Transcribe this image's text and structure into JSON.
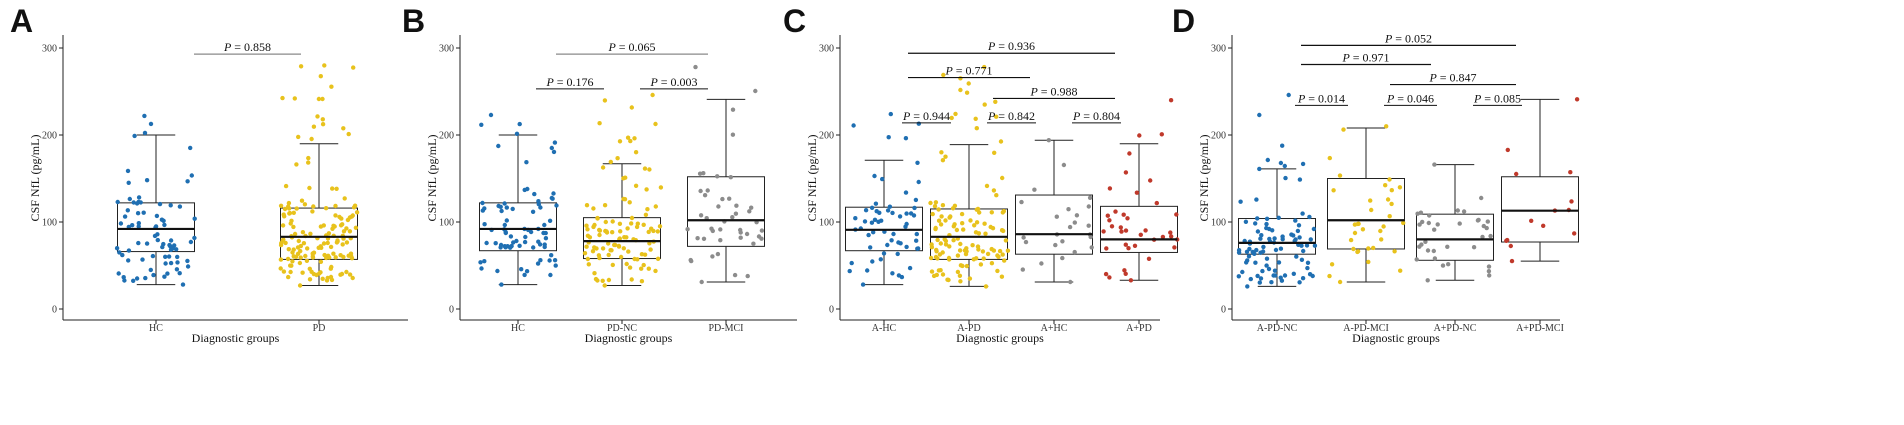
{
  "colors": {
    "HC": "#1f6fb2",
    "PD": "#e8c21c",
    "MCI": "#8c8c8c",
    "APD": "#c0392b",
    "box": "#222222",
    "sigline": "#8a8a8a",
    "pline": "#111111"
  },
  "chart_data": [
    {
      "type": "boxplot",
      "panel": "A",
      "xlabel": "Diagnostic groups",
      "ylabel": "CSF NfL (pg/mL)",
      "ylim": [
        0,
        300
      ],
      "yticks": [
        "0",
        "100",
        "200",
        "300"
      ],
      "groups": [
        {
          "name": "HC",
          "color_key": "HC",
          "n": 80,
          "q1": 66,
          "median": 92,
          "q3": 122,
          "wlo": 28,
          "whi": 200,
          "jmin": 28,
          "jmax": 222,
          "seed": 11
        },
        {
          "name": "PD",
          "color_key": "PD",
          "n": 160,
          "q1": 57,
          "median": 83,
          "q3": 116,
          "wlo": 27,
          "whi": 190,
          "jmin": 27,
          "jmax": 280,
          "seed": 23
        }
      ],
      "comparisons": [
        {
          "from": 0,
          "to": 1,
          "y": 293,
          "p": "0.858",
          "style": "grey"
        }
      ]
    },
    {
      "type": "boxplot",
      "panel": "B",
      "xlabel": "Diagnostic groups",
      "ylabel": "CSF NfL (pg/mL)",
      "ylim": [
        0,
        300
      ],
      "yticks": [
        "0",
        "100",
        "200",
        "300"
      ],
      "groups": [
        {
          "name": "HC",
          "color_key": "HC",
          "n": 80,
          "q1": 67,
          "median": 92,
          "q3": 122,
          "wlo": 28,
          "whi": 200,
          "jmin": 28,
          "jmax": 223,
          "seed": 37
        },
        {
          "name": "PD-NC",
          "color_key": "PD",
          "n": 110,
          "q1": 58,
          "median": 78,
          "q3": 105,
          "wlo": 27,
          "whi": 167,
          "jmin": 27,
          "jmax": 246,
          "seed": 41
        },
        {
          "name": "PD-MCI",
          "color_key": "MCI",
          "n": 45,
          "q1": 72,
          "median": 102,
          "q3": 152,
          "wlo": 31,
          "whi": 241,
          "jmin": 31,
          "jmax": 278,
          "seed": 53
        }
      ],
      "comparisons": [
        {
          "from": 0,
          "to": 2,
          "y": 293,
          "p": "0.065",
          "style": "grey"
        },
        {
          "from": 0,
          "to": 1,
          "y": 253,
          "p": "0.176",
          "style": "short"
        },
        {
          "from": 1,
          "to": 2,
          "y": 253,
          "p": "0.003",
          "style": "short"
        }
      ]
    },
    {
      "type": "boxplot",
      "panel": "C",
      "xlabel": "Diagnostic groups",
      "ylabel": "CSF NfL (pg/mL)",
      "ylim": [
        0,
        300
      ],
      "yticks": [
        "0",
        "100",
        "200",
        "300"
      ],
      "groups": [
        {
          "name": "A-HC",
          "color_key": "HC",
          "n": 60,
          "q1": 67,
          "median": 91,
          "q3": 117,
          "wlo": 28,
          "whi": 171,
          "jmin": 28,
          "jmax": 224,
          "seed": 61
        },
        {
          "name": "A-PD",
          "color_key": "PD",
          "n": 125,
          "q1": 57,
          "median": 83,
          "q3": 115,
          "wlo": 26,
          "whi": 189,
          "jmin": 26,
          "jmax": 278,
          "seed": 67
        },
        {
          "name": "A+HC",
          "color_key": "MCI",
          "n": 25,
          "q1": 63,
          "median": 86,
          "q3": 131,
          "wlo": 31,
          "whi": 194,
          "jmin": 31,
          "jmax": 194,
          "seed": 71
        },
        {
          "name": "A+PD",
          "color_key": "APD",
          "n": 38,
          "q1": 65,
          "median": 80,
          "q3": 118,
          "wlo": 33,
          "whi": 190,
          "jmin": 33,
          "jmax": 240,
          "seed": 79
        }
      ],
      "comparisons": [
        {
          "from": 0,
          "to": 3,
          "y": 294,
          "p": "0.936",
          "style": "dark"
        },
        {
          "from": 0,
          "to": 2,
          "y": 266,
          "p": "0.771",
          "style": "dark"
        },
        {
          "from": 1,
          "to": 3,
          "y": 242,
          "p": "0.988",
          "style": "dark"
        },
        {
          "from": 0,
          "to": 1,
          "y": 214,
          "p": "0.944",
          "style": "short"
        },
        {
          "from": 1,
          "to": 2,
          "y": 214,
          "p": "0.842",
          "style": "short"
        },
        {
          "from": 2,
          "to": 3,
          "y": 214,
          "p": "0.804",
          "style": "short"
        }
      ]
    },
    {
      "type": "boxplot",
      "panel": "D",
      "xlabel": "Diagnostic groups",
      "ylabel": "CSF NfL (pg/mL)",
      "ylim": [
        0,
        300
      ],
      "yticks": [
        "0",
        "100",
        "200",
        "300"
      ],
      "groups": [
        {
          "name": "A-PD-NC",
          "color_key": "HC",
          "n": 95,
          "q1": 63,
          "median": 76,
          "q3": 104,
          "wlo": 26,
          "whi": 161,
          "jmin": 26,
          "jmax": 246,
          "seed": 83
        },
        {
          "name": "A-PD-MCI",
          "color_key": "PD",
          "n": 35,
          "q1": 69,
          "median": 102,
          "q3": 150,
          "wlo": 31,
          "whi": 208,
          "jmin": 31,
          "jmax": 210,
          "seed": 89
        },
        {
          "name": "A+PD-NC",
          "color_key": "MCI",
          "n": 35,
          "q1": 56,
          "median": 80,
          "q3": 109,
          "wlo": 33,
          "whi": 166,
          "jmin": 33,
          "jmax": 166,
          "seed": 97
        },
        {
          "name": "A+PD-MCI",
          "color_key": "APD",
          "n": 14,
          "q1": 77,
          "median": 113,
          "q3": 152,
          "wlo": 55,
          "whi": 241,
          "jmin": 55,
          "jmax": 241,
          "seed": 101
        }
      ],
      "comparisons": [
        {
          "from": 0,
          "to": 3,
          "y": 303,
          "p": "0.052",
          "style": "dark"
        },
        {
          "from": 0,
          "to": 2,
          "y": 281,
          "p": "0.971",
          "style": "dark"
        },
        {
          "from": 1,
          "to": 3,
          "y": 258,
          "p": "0.847",
          "style": "dark"
        },
        {
          "from": 0,
          "to": 1,
          "y": 234,
          "p": "0.014",
          "style": "short"
        },
        {
          "from": 1,
          "to": 2,
          "y": 234,
          "p": "0.046",
          "style": "short"
        },
        {
          "from": 2,
          "to": 3,
          "y": 234,
          "p": "0.085",
          "style": "short"
        }
      ]
    }
  ]
}
